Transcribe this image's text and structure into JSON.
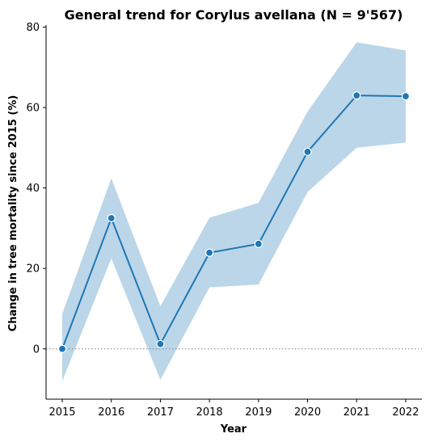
{
  "chart_data": {
    "type": "line",
    "title": "General trend for Corylus avellana  (N = 9'567)",
    "xlabel": "Year",
    "ylabel": "Change in tree mortality since 2015 (%)",
    "x": [
      2015,
      2016,
      2017,
      2018,
      2019,
      2020,
      2021,
      2022
    ],
    "x_tick_labels": [
      "2015",
      "2016",
      "2017",
      "2018",
      "2019",
      "2020",
      "2021",
      "2022"
    ],
    "y_ticks": [
      0,
      20,
      40,
      60,
      80
    ],
    "y_tick_labels": [
      "0",
      "20",
      "40",
      "60",
      "80"
    ],
    "xlim": [
      2014.67,
      2022.33
    ],
    "ylim": [
      -12.5,
      80.5
    ],
    "series": [
      {
        "values": [
          0,
          32.5,
          1.2,
          23.9,
          26.1,
          49.0,
          63.0,
          62.8
        ],
        "ci_lower": [
          -8.0,
          22.5,
          -7.7,
          15.3,
          16.0,
          39.0,
          50.0,
          51.3
        ],
        "ci_upper": [
          8.7,
          42.4,
          10.6,
          32.6,
          36.3,
          59.0,
          76.2,
          74.2
        ],
        "color": "#1f77b4"
      }
    ],
    "reference_line": {
      "y": 0,
      "style": "dotted",
      "color": "#808080"
    },
    "grid": false,
    "legend": false
  }
}
